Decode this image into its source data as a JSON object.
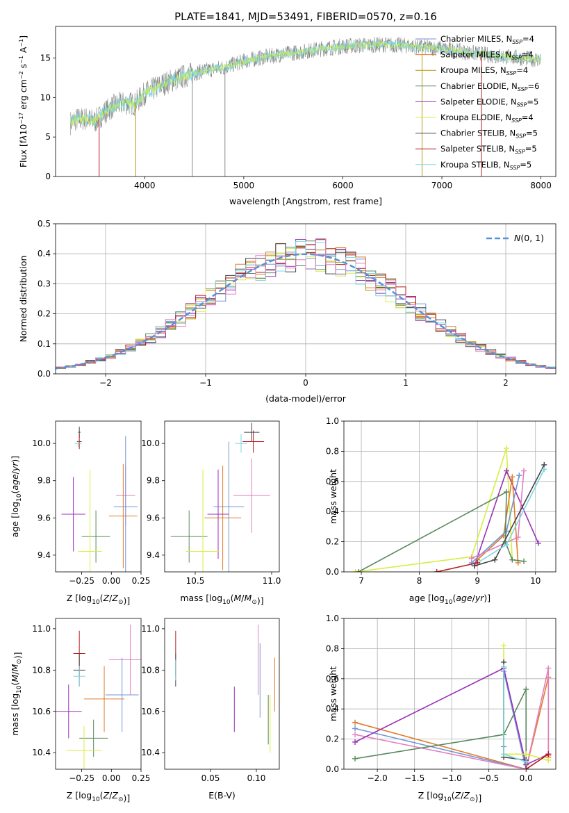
{
  "figure_title": "PLATE=1841, MJD=53491, FIBERID=0570, z=0.16",
  "colors": {
    "Chabrier MILES": "#6f95d6",
    "Salpeter MILES": "#e07b2a",
    "Kroupa MILES": "#b5970f",
    "Chabrier ELODIE": "#5a8a5f",
    "Salpeter ELODIE": "#9b30b8",
    "Kroupa ELODIE": "#d8ee3e",
    "Chabrier STELIB": "#444444",
    "Salpeter STELIB": "#b51e1e",
    "Kroupa STELIB": "#7fd6e0",
    "Pink": "#e37fbf",
    "Gray": "#888888",
    "Normal": "#5b8fd6"
  },
  "chart_data": [
    {
      "type": "line",
      "panel": "spectrum",
      "title": "PLATE=1841, MJD=53491, FIBERID=0570, z=0.16",
      "xlabel": "wavelength [Angstrom, rest frame]",
      "ylabel_html": "Flux [f<tspan font-style='italic'>λ</tspan>10<tspan dy='-5' font-size='8'>−17</tspan><tspan dy='5'> erg cm</tspan><tspan dy='-5' font-size='8'>−2</tspan><tspan dy='5'> s</tspan><tspan dy='-5' font-size='8'>−1</tspan><tspan dy='5'> A</tspan><tspan dy='-5' font-size='8'>−1</tspan><tspan dy='5'>]</tspan>",
      "xlim": [
        3100,
        8150
      ],
      "ylim": [
        0,
        19
      ],
      "xticks": [
        4000,
        5000,
        6000,
        7000,
        8000
      ],
      "yticks": [
        0,
        5,
        10,
        15
      ],
      "grid": false,
      "legend_position": "right",
      "legend": [
        {
          "label": "Chabrier MILES, N",
          "sub": "SSP",
          "suffix": "=4",
          "color": "#6f95d6"
        },
        {
          "label": "Salpeter MILES, N",
          "sub": "SSP",
          "suffix": "=4",
          "color": "#e07b2a"
        },
        {
          "label": "Kroupa MILES, N",
          "sub": "SSP",
          "suffix": "=4",
          "color": "#b5970f"
        },
        {
          "label": "Chabrier ELODIE, N",
          "sub": "SSP",
          "suffix": "=6",
          "color": "#5a8a5f"
        },
        {
          "label": "Salpeter ELODIE, N",
          "sub": "SSP",
          "suffix": "=5",
          "color": "#9b30b8"
        },
        {
          "label": "Kroupa ELODIE, N",
          "sub": "SSP",
          "suffix": "=4",
          "color": "#d8ee3e"
        },
        {
          "label": "Chabrier STELIB, N",
          "sub": "SSP",
          "suffix": "=5",
          "color": "#444444"
        },
        {
          "label": "Salpeter STELIB, N",
          "sub": "SSP",
          "suffix": "=5",
          "color": "#b51e1e"
        },
        {
          "label": "Kroupa STELIB, N",
          "sub": "SSP",
          "suffix": "=5",
          "color": "#7fd6e0"
        }
      ],
      "envelope": {
        "x": [
          3250,
          3300,
          3400,
          3500,
          3600,
          3700,
          3800,
          3900,
          4000,
          4200,
          4400,
          4600,
          4800,
          5000,
          5200,
          5400,
          5600,
          5800,
          6000,
          6200,
          6400,
          6600,
          6800,
          7000,
          7200,
          7400,
          7600,
          7800,
          8000
        ],
        "y": [
          6.8,
          7.2,
          7.3,
          7.0,
          8.2,
          9.0,
          9.3,
          9.2,
          10.5,
          11.8,
          12.7,
          13.4,
          13.8,
          14.6,
          15.1,
          15.5,
          15.8,
          16.2,
          16.5,
          16.6,
          16.7,
          16.6,
          16.4,
          16.2,
          15.8,
          15.5,
          15.2,
          15.0,
          14.8
        ]
      },
      "noise_amp": 1.3,
      "spikes": [
        {
          "x": 3540,
          "ymin": 0,
          "color": "#b51e1e"
        },
        {
          "x": 3910,
          "ymin": 0,
          "color": "#b5970f"
        },
        {
          "x": 4480,
          "ymin": 0,
          "color": "#888888"
        },
        {
          "x": 4810,
          "ymin": 0,
          "color": "#888888"
        },
        {
          "x": 6800,
          "ymin": 0,
          "color": "#b5970f"
        },
        {
          "x": 7400,
          "ymin": 0,
          "color": "#b51e1e"
        }
      ]
    },
    {
      "type": "histogram",
      "panel": "residuals",
      "xlabel": "(data-model)/error",
      "ylabel": "Normed distribution",
      "xlim": [
        -2.5,
        2.5
      ],
      "ylim": [
        0,
        0.5
      ],
      "xticks": [
        -2,
        -1,
        0,
        1,
        2
      ],
      "yticks": [
        0.0,
        0.1,
        0.2,
        0.3,
        0.4,
        0.5
      ],
      "grid": true,
      "legend_position": "top-right",
      "legend_label": "N(0,1)",
      "bin_width": 0.1,
      "series_colors": [
        "#6f95d6",
        "#e07b2a",
        "#b5970f",
        "#5a8a5f",
        "#9b30b8",
        "#d8ee3e",
        "#444444",
        "#b51e1e",
        "#7fd6e0",
        "#e37fbf"
      ]
    },
    {
      "type": "errorbar",
      "panel": "age_vs_Z",
      "xlabel": "Z [log10(Z/Z☉)]",
      "ylabel": "age  [log10(age/yr)]",
      "xlim": [
        -0.47,
        0.25
      ],
      "ylim": [
        9.31,
        10.12
      ],
      "xticks": [
        -0.25,
        0.0,
        0.25
      ],
      "yticks": [
        9.4,
        9.6,
        9.8,
        10.0
      ],
      "grid": false,
      "points": [
        {
          "x": -0.27,
          "y": 10.06,
          "xerr": 0.01,
          "yerr": 0.03,
          "color": "#444444"
        },
        {
          "x": -0.27,
          "y": 10.01,
          "xerr": 0.02,
          "yerr": 0.04,
          "color": "#b51e1e"
        },
        {
          "x": -0.28,
          "y": 10.0,
          "xerr": 0.03,
          "yerr": 0.02,
          "color": "#7fd6e0"
        },
        {
          "x": 0.12,
          "y": 9.72,
          "xerr": 0.08,
          "yerr": 0.16,
          "color": "#e37fbf"
        },
        {
          "x": 0.12,
          "y": 9.66,
          "xerr": 0.1,
          "yerr": 0.38,
          "color": "#6f95d6"
        },
        {
          "x": 0.1,
          "y": 9.61,
          "xerr": 0.12,
          "yerr": 0.28,
          "color": "#e07b2a"
        },
        {
          "x": -0.32,
          "y": 9.62,
          "xerr": 0.1,
          "yerr": 0.2,
          "color": "#9b30b8"
        },
        {
          "x": -0.13,
          "y": 9.5,
          "xerr": 0.12,
          "yerr": 0.14,
          "color": "#5a8a5f"
        },
        {
          "x": -0.18,
          "y": 9.42,
          "xerr": 0.1,
          "yerr": 0.44,
          "color": "#d8ee3e"
        }
      ]
    },
    {
      "type": "errorbar",
      "panel": "age_vs_mass",
      "xlabel": "mass [log10(M/M☉)]",
      "ylabel": "",
      "xlim": [
        10.3,
        11.05
      ],
      "ylim": [
        9.31,
        10.12
      ],
      "xticks": [
        10.5,
        11.0
      ],
      "yticks": [
        9.4,
        9.6,
        9.8,
        10.0
      ],
      "grid": false,
      "points": [
        {
          "x": 10.87,
          "y": 10.06,
          "xerr": 0.05,
          "yerr": 0.05,
          "color": "#444444"
        },
        {
          "x": 10.88,
          "y": 10.01,
          "xerr": 0.07,
          "yerr": 0.06,
          "color": "#b51e1e"
        },
        {
          "x": 10.8,
          "y": 10.0,
          "xerr": 0.04,
          "yerr": 0.05,
          "color": "#7fd6e0"
        },
        {
          "x": 10.87,
          "y": 9.72,
          "xerr": 0.12,
          "yerr": 0.2,
          "color": "#e37fbf"
        },
        {
          "x": 10.72,
          "y": 9.66,
          "xerr": 0.1,
          "yerr": 0.35,
          "color": "#6f95d6"
        },
        {
          "x": 10.68,
          "y": 9.6,
          "xerr": 0.12,
          "yerr": 0.28,
          "color": "#e07b2a"
        },
        {
          "x": 10.65,
          "y": 9.62,
          "xerr": 0.07,
          "yerr": 0.24,
          "color": "#9b30b8"
        },
        {
          "x": 10.46,
          "y": 9.5,
          "xerr": 0.12,
          "yerr": 0.14,
          "color": "#5a8a5f"
        },
        {
          "x": 10.55,
          "y": 9.42,
          "xerr": 0.11,
          "yerr": 0.44,
          "color": "#d8ee3e"
        }
      ]
    },
    {
      "type": "line",
      "panel": "weight_vs_age",
      "xlabel": "age  [log10(age/yr)]",
      "ylabel": "mass weight",
      "xlim": [
        6.7,
        10.35
      ],
      "ylim": [
        0.0,
        1.0
      ],
      "xticks": [
        7,
        8,
        9,
        10
      ],
      "yticks": [
        0.0,
        0.2,
        0.4,
        0.6,
        0.8,
        1.0
      ],
      "grid": true,
      "series": [
        {
          "color": "#d8ee3e",
          "x": [
            6.9,
            8.9,
            9.5,
            9.6
          ],
          "y": [
            0.0,
            0.1,
            0.82,
            0.08
          ]
        },
        {
          "color": "#9b30b8",
          "x": [
            8.95,
            9.5,
            10.05
          ],
          "y": [
            0.04,
            0.67,
            0.19
          ]
        },
        {
          "color": "#e07b2a",
          "x": [
            9.0,
            9.45,
            9.6,
            9.7
          ],
          "y": [
            0.08,
            0.24,
            0.63,
            0.06
          ]
        },
        {
          "color": "#6f95d6",
          "x": [
            8.9,
            9.5,
            9.72
          ],
          "y": [
            0.06,
            0.27,
            0.64
          ]
        },
        {
          "color": "#e37fbf",
          "x": [
            8.9,
            9.7,
            9.8
          ],
          "y": [
            0.09,
            0.23,
            0.67
          ]
        },
        {
          "color": "#5a8a5f",
          "x": [
            6.95,
            9.5,
            9.48,
            9.6,
            9.8
          ],
          "y": [
            0.0,
            0.53,
            0.2,
            0.08,
            0.07
          ]
        },
        {
          "color": "#444444",
          "x": [
            8.95,
            9.3,
            10.15
          ],
          "y": [
            0.04,
            0.08,
            0.71
          ]
        },
        {
          "color": "#7fd6e0",
          "x": [
            9.0,
            9.5,
            10.15
          ],
          "y": [
            0.06,
            0.18,
            0.68
          ]
        },
        {
          "color": "#b51e1e",
          "x": [
            8.3,
            9.0
          ],
          "y": [
            0.0,
            0.06
          ]
        }
      ]
    },
    {
      "type": "errorbar",
      "panel": "mass_vs_Z",
      "xlabel": "Z [log10(Z/Z☉)]",
      "ylabel": "mass [log10(M/M☉)]",
      "xlim": [
        -0.47,
        0.25
      ],
      "ylim": [
        10.32,
        11.05
      ],
      "xticks": [
        -0.25,
        0.0,
        0.25
      ],
      "yticks": [
        10.4,
        10.6,
        10.8,
        11.0
      ],
      "grid": false,
      "points": [
        {
          "x": -0.27,
          "y": 10.88,
          "xerr": 0.05,
          "yerr": 0.11,
          "color": "#b51e1e"
        },
        {
          "x": -0.27,
          "y": 10.8,
          "xerr": 0.05,
          "yerr": 0.08,
          "color": "#444444"
        },
        {
          "x": -0.27,
          "y": 10.77,
          "xerr": 0.05,
          "yerr": 0.05,
          "color": "#7fd6e0"
        },
        {
          "x": 0.16,
          "y": 10.85,
          "xerr": 0.18,
          "yerr": 0.17,
          "color": "#e37fbf"
        },
        {
          "x": 0.09,
          "y": 10.68,
          "xerr": 0.14,
          "yerr": 0.18,
          "color": "#6f95d6"
        },
        {
          "x": -0.06,
          "y": 10.66,
          "xerr": 0.17,
          "yerr": 0.16,
          "color": "#e07b2a"
        },
        {
          "x": -0.36,
          "y": 10.6,
          "xerr": 0.11,
          "yerr": 0.13,
          "color": "#9b30b8"
        },
        {
          "x": -0.15,
          "y": 10.47,
          "xerr": 0.12,
          "yerr": 0.09,
          "color": "#5a8a5f"
        },
        {
          "x": -0.23,
          "y": 10.41,
          "xerr": 0.15,
          "yerr": 0.12,
          "color": "#d8ee3e"
        }
      ]
    },
    {
      "type": "errorbar",
      "panel": "mass_vs_EBV",
      "xlabel": "E(B-V)",
      "ylabel": "",
      "xlim": [
        0.0,
        0.125
      ],
      "ylim": [
        10.32,
        11.05
      ],
      "xticks": [
        0.05,
        0.1
      ],
      "yticks": [
        10.4,
        10.6,
        10.8,
        11.0
      ],
      "grid": false,
      "points": [
        {
          "x": 0.012,
          "y": 10.88,
          "xerr": 0.0,
          "yerr": 0.11,
          "color": "#b51e1e"
        },
        {
          "x": 0.012,
          "y": 10.8,
          "xerr": 0.0,
          "yerr": 0.08,
          "color": "#444444"
        },
        {
          "x": 0.012,
          "y": 10.8,
          "xerr": 0.0,
          "yerr": 0.05,
          "color": "#7fd6e0"
        },
        {
          "x": 0.102,
          "y": 10.85,
          "xerr": 0.0,
          "yerr": 0.17,
          "color": "#e37fbf"
        },
        {
          "x": 0.104,
          "y": 10.75,
          "xerr": 0.0,
          "yerr": 0.18,
          "color": "#6f95d6"
        },
        {
          "x": 0.12,
          "y": 10.73,
          "xerr": 0.0,
          "yerr": 0.13,
          "color": "#e07b2a"
        },
        {
          "x": 0.076,
          "y": 10.61,
          "xerr": 0.0,
          "yerr": 0.11,
          "color": "#9b30b8"
        },
        {
          "x": 0.113,
          "y": 10.56,
          "xerr": 0.0,
          "yerr": 0.12,
          "color": "#5a8a5f"
        },
        {
          "x": 0.115,
          "y": 10.54,
          "xerr": 0.0,
          "yerr": 0.14,
          "color": "#d8ee3e"
        }
      ]
    },
    {
      "type": "line",
      "panel": "weight_vs_Z",
      "xlabel": "Z [log10(Z/Z☉)]",
      "ylabel": "mass weight",
      "xlim": [
        -2.45,
        0.4
      ],
      "ylim": [
        0.0,
        1.0
      ],
      "xticks": [
        -2.0,
        -1.5,
        -1.0,
        -0.5,
        0.0
      ],
      "yticks": [
        0.0,
        0.2,
        0.4,
        0.6,
        0.8,
        1.0
      ],
      "grid": true,
      "series": [
        {
          "color": "#e07b2a",
          "x": [
            -2.3,
            0.0,
            0.3,
            0.3
          ],
          "y": [
            0.31,
            0.0,
            0.61,
            0.08
          ]
        },
        {
          "color": "#6f95d6",
          "x": [
            -2.3,
            0.0,
            -0.3,
            -0.3
          ],
          "y": [
            0.27,
            0.0,
            0.65,
            0.15
          ]
        },
        {
          "color": "#e37fbf",
          "x": [
            -2.3,
            0.0,
            0.3,
            0.3
          ],
          "y": [
            0.23,
            0.0,
            0.67,
            0.09
          ]
        },
        {
          "color": "#9b30b8",
          "x": [
            -2.3,
            -0.3,
            0.0,
            0.3
          ],
          "y": [
            0.18,
            0.67,
            0.03,
            0.1
          ]
        },
        {
          "color": "#5a8a5f",
          "x": [
            -2.3,
            -0.3,
            0.0,
            0.0
          ],
          "y": [
            0.07,
            0.23,
            0.53,
            0.0
          ]
        },
        {
          "color": "#d8ee3e",
          "x": [
            -0.3,
            -0.3,
            0.0,
            0.3
          ],
          "y": [
            0.82,
            0.1,
            0.1,
            0.06
          ]
        },
        {
          "color": "#444444",
          "x": [
            -0.3,
            -0.3,
            0.0
          ],
          "y": [
            0.71,
            0.08,
            0.06
          ]
        },
        {
          "color": "#7fd6e0",
          "x": [
            -0.3,
            -0.3,
            0.0
          ],
          "y": [
            0.68,
            0.1,
            0.05
          ]
        },
        {
          "color": "#b51e1e",
          "x": [
            0.0,
            0.3
          ],
          "y": [
            0.0,
            0.1
          ]
        }
      ]
    }
  ]
}
